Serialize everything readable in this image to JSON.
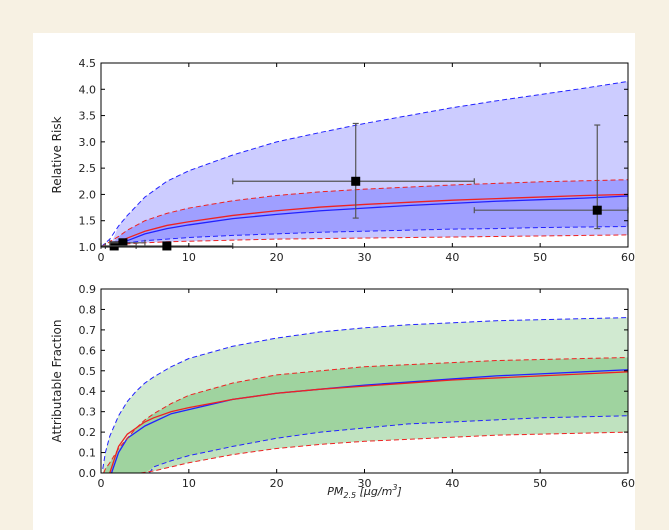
{
  "chart_data": [
    {
      "type": "line",
      "ylabel": "Relative Risk",
      "xlim": [
        0,
        60
      ],
      "ylim": [
        1.0,
        4.5
      ],
      "xticks": [
        0,
        10,
        20,
        30,
        40,
        50,
        60
      ],
      "yticks": [
        "1.0",
        "1.5",
        "2.0",
        "2.5",
        "3.0",
        "3.5",
        "4.0",
        "4.5"
      ],
      "bands": [
        {
          "name": "",
          "color": "#0000ff",
          "opacity": 0.2,
          "x": [
            1,
            2,
            3,
            5,
            7.5,
            10,
            15,
            20,
            25,
            30,
            35,
            40,
            45,
            50,
            55,
            60
          ],
          "lower": [
            1.0,
            1.05,
            1.08,
            1.12,
            1.15,
            1.18,
            1.22,
            1.25,
            1.28,
            1.3,
            1.32,
            1.34,
            1.35,
            1.37,
            1.38,
            1.39
          ],
          "upper": [
            1.0,
            1.4,
            1.6,
            1.95,
            2.25,
            2.45,
            2.75,
            3.0,
            3.18,
            3.35,
            3.5,
            3.65,
            3.78,
            3.9,
            4.02,
            4.15
          ]
        },
        {
          "name": "",
          "color": "#0000ff",
          "opacity": 0.22,
          "x": [
            1,
            2,
            3,
            5,
            7.5,
            10,
            15,
            20,
            25,
            30,
            35,
            40,
            45,
            50,
            55,
            60
          ],
          "lower": [
            1.0,
            1.04,
            1.06,
            1.08,
            1.1,
            1.11,
            1.13,
            1.15,
            1.16,
            1.17,
            1.18,
            1.19,
            1.2,
            1.21,
            1.22,
            1.23
          ],
          "upper": [
            1.0,
            1.2,
            1.32,
            1.5,
            1.64,
            1.74,
            1.88,
            1.98,
            2.05,
            2.1,
            2.14,
            2.18,
            2.21,
            2.24,
            2.26,
            2.28
          ]
        }
      ],
      "series": [
        {
          "name": "",
          "color": "#2222ff",
          "width": 1.3,
          "x": [
            1,
            2,
            3,
            5,
            7.5,
            10,
            15,
            20,
            25,
            30,
            35,
            40,
            45,
            50,
            55,
            60
          ],
          "y": [
            1.0,
            1.06,
            1.12,
            1.25,
            1.35,
            1.42,
            1.54,
            1.62,
            1.69,
            1.74,
            1.79,
            1.83,
            1.87,
            1.9,
            1.93,
            1.97
          ]
        },
        {
          "name": "",
          "color": "#ee2222",
          "width": 1.3,
          "x": [
            1,
            2,
            3,
            5,
            7.5,
            10,
            15,
            20,
            25,
            30,
            35,
            40,
            45,
            50,
            55,
            60
          ],
          "y": [
            1.0,
            1.1,
            1.17,
            1.3,
            1.41,
            1.48,
            1.6,
            1.69,
            1.76,
            1.81,
            1.85,
            1.89,
            1.92,
            1.95,
            1.98,
            2.0
          ]
        },
        {
          "name": "",
          "color": "#2222ff",
          "width": 1,
          "dashed": true,
          "x": [
            0,
            1,
            2,
            3,
            5,
            7.5,
            10,
            15,
            20,
            25,
            30,
            35,
            40,
            45,
            50,
            55,
            60
          ],
          "y": [
            1.0,
            1.15,
            1.4,
            1.6,
            1.95,
            2.25,
            2.45,
            2.75,
            3.0,
            3.18,
            3.35,
            3.5,
            3.65,
            3.78,
            3.9,
            4.02,
            4.15
          ]
        },
        {
          "name": "",
          "color": "#2222ff",
          "width": 1,
          "dashed": true,
          "x": [
            1,
            2,
            3,
            5,
            7.5,
            10,
            15,
            20,
            25,
            30,
            35,
            40,
            45,
            50,
            55,
            60
          ],
          "y": [
            1.0,
            1.05,
            1.08,
            1.12,
            1.15,
            1.18,
            1.22,
            1.25,
            1.28,
            1.3,
            1.32,
            1.34,
            1.35,
            1.37,
            1.38,
            1.39
          ]
        },
        {
          "name": "",
          "color": "#ee2222",
          "width": 1,
          "dashed": true,
          "x": [
            0,
            1,
            2,
            3,
            5,
            7.5,
            10,
            15,
            20,
            25,
            30,
            35,
            40,
            45,
            50,
            55,
            60
          ],
          "y": [
            1.0,
            1.1,
            1.2,
            1.32,
            1.5,
            1.64,
            1.74,
            1.88,
            1.98,
            2.05,
            2.1,
            2.14,
            2.18,
            2.21,
            2.24,
            2.26,
            2.28
          ]
        },
        {
          "name": "",
          "color": "#ee2222",
          "width": 1,
          "dashed": true,
          "x": [
            1,
            2,
            3,
            5,
            7.5,
            10,
            15,
            20,
            25,
            30,
            35,
            40,
            45,
            50,
            55,
            60
          ],
          "y": [
            1.0,
            1.04,
            1.06,
            1.08,
            1.1,
            1.11,
            1.13,
            1.15,
            1.16,
            1.17,
            1.18,
            1.19,
            1.2,
            1.21,
            1.22,
            1.23
          ]
        }
      ],
      "points": [
        {
          "x": 1.5,
          "y": 1.02,
          "xerr": [
            0.5,
            4
          ],
          "yerr": [
            1.0,
            1.08
          ]
        },
        {
          "x": 2.5,
          "y": 1.08,
          "xerr": [
            1,
            5
          ],
          "yerr": [
            1.02,
            1.15
          ]
        },
        {
          "x": 7.5,
          "y": 1.02,
          "xerr": [
            0,
            15
          ],
          "yerr": [
            1.0,
            1.05
          ]
        },
        {
          "x": 29,
          "y": 2.25,
          "xerr": [
            15,
            42.5
          ],
          "yerr": [
            1.55,
            3.35
          ]
        },
        {
          "x": 56.5,
          "y": 1.7,
          "xerr": [
            42.5,
            60
          ],
          "yerr": [
            1.35,
            3.32
          ]
        }
      ]
    },
    {
      "type": "line",
      "xlabel": "PM_{2.5} [μg/m^3]",
      "ylabel": "Attributable Fraction",
      "xlim": [
        0,
        60
      ],
      "ylim": [
        0,
        0.9
      ],
      "xticks": [
        0,
        10,
        20,
        30,
        40,
        50,
        60
      ],
      "yticks": [
        "0.0",
        "0.1",
        "0.2",
        "0.3",
        "0.4",
        "0.5",
        "0.6",
        "0.7",
        "0.8",
        "0.9"
      ],
      "bands": [
        {
          "name": "",
          "color": "#2ca02c",
          "opacity": 0.22,
          "x": [
            0.2,
            0.5,
            1,
            2,
            3,
            4,
            5,
            6,
            8,
            10,
            15,
            20,
            25,
            30,
            35,
            40,
            45,
            50,
            55,
            60
          ],
          "lower": [
            0,
            0,
            0,
            0,
            0,
            0,
            0,
            0.03,
            0.06,
            0.085,
            0.13,
            0.17,
            0.2,
            0.22,
            0.24,
            0.25,
            0.26,
            0.27,
            0.275,
            0.28
          ],
          "upper": [
            0.02,
            0.1,
            0.18,
            0.28,
            0.35,
            0.4,
            0.44,
            0.47,
            0.52,
            0.56,
            0.62,
            0.66,
            0.69,
            0.71,
            0.725,
            0.735,
            0.745,
            0.75,
            0.755,
            0.76
          ]
        },
        {
          "name": "",
          "color": "#2ca02c",
          "opacity": 0.3,
          "x": [
            0.2,
            0.5,
            1,
            2,
            3,
            4,
            5,
            6,
            8,
            10,
            15,
            20,
            25,
            30,
            35,
            40,
            45,
            50,
            55,
            60
          ],
          "lower": [
            0,
            0,
            0,
            0,
            0,
            0,
            0,
            0.01,
            0.03,
            0.05,
            0.09,
            0.12,
            0.14,
            0.155,
            0.165,
            0.175,
            0.185,
            0.19,
            0.195,
            0.2
          ],
          "upper": [
            0,
            0.02,
            0.05,
            0.12,
            0.17,
            0.22,
            0.26,
            0.29,
            0.34,
            0.38,
            0.44,
            0.48,
            0.5,
            0.52,
            0.53,
            0.54,
            0.55,
            0.555,
            0.56,
            0.565
          ]
        }
      ],
      "series": [
        {
          "name": "",
          "color": "#2222ff",
          "width": 1.3,
          "x": [
            1.2,
            2,
            3,
            4,
            5,
            6,
            8,
            10,
            15,
            20,
            25,
            30,
            35,
            40,
            45,
            50,
            55,
            60
          ],
          "y": [
            0,
            0.1,
            0.17,
            0.2,
            0.23,
            0.25,
            0.29,
            0.31,
            0.36,
            0.39,
            0.41,
            0.43,
            0.445,
            0.46,
            0.475,
            0.485,
            0.495,
            0.505
          ]
        },
        {
          "name": "",
          "color": "#ee2222",
          "width": 1.3,
          "x": [
            1,
            2,
            3,
            4,
            5,
            6,
            8,
            10,
            15,
            20,
            25,
            30,
            35,
            40,
            45,
            50,
            55,
            60
          ],
          "y": [
            0,
            0.13,
            0.19,
            0.22,
            0.25,
            0.27,
            0.3,
            0.32,
            0.36,
            0.39,
            0.41,
            0.425,
            0.44,
            0.455,
            0.465,
            0.475,
            0.485,
            0.495
          ]
        },
        {
          "name": "",
          "color": "#2222ff",
          "width": 1,
          "dashed": true,
          "x": [
            0.2,
            0.5,
            1,
            2,
            3,
            4,
            5,
            6,
            8,
            10,
            15,
            20,
            25,
            30,
            35,
            40,
            45,
            50,
            55,
            60
          ],
          "y": [
            0.02,
            0.1,
            0.18,
            0.28,
            0.35,
            0.4,
            0.44,
            0.47,
            0.52,
            0.56,
            0.62,
            0.66,
            0.69,
            0.71,
            0.725,
            0.735,
            0.745,
            0.75,
            0.755,
            0.76
          ]
        },
        {
          "name": "",
          "color": "#2222ff",
          "width": 1,
          "dashed": true,
          "x": [
            5.5,
            6,
            8,
            10,
            15,
            20,
            25,
            30,
            35,
            40,
            45,
            50,
            55,
            60
          ],
          "y": [
            0,
            0.03,
            0.06,
            0.085,
            0.13,
            0.17,
            0.2,
            0.22,
            0.24,
            0.25,
            0.26,
            0.27,
            0.275,
            0.28
          ]
        },
        {
          "name": "",
          "color": "#ee2222",
          "width": 1,
          "dashed": true,
          "x": [
            0.3,
            0.5,
            1,
            2,
            3,
            4,
            5,
            6,
            8,
            10,
            15,
            20,
            25,
            30,
            35,
            40,
            45,
            50,
            55,
            60
          ],
          "y": [
            0,
            0.02,
            0.05,
            0.12,
            0.17,
            0.22,
            0.26,
            0.29,
            0.34,
            0.38,
            0.44,
            0.48,
            0.5,
            0.52,
            0.53,
            0.54,
            0.55,
            0.555,
            0.56,
            0.565
          ]
        },
        {
          "name": "",
          "color": "#ee2222",
          "width": 1,
          "dashed": true,
          "x": [
            4.5,
            6,
            8,
            10,
            15,
            20,
            25,
            30,
            35,
            40,
            45,
            50,
            55,
            60
          ],
          "y": [
            0,
            0.01,
            0.03,
            0.05,
            0.09,
            0.12,
            0.14,
            0.155,
            0.165,
            0.175,
            0.185,
            0.19,
            0.195,
            0.2
          ]
        }
      ]
    }
  ]
}
